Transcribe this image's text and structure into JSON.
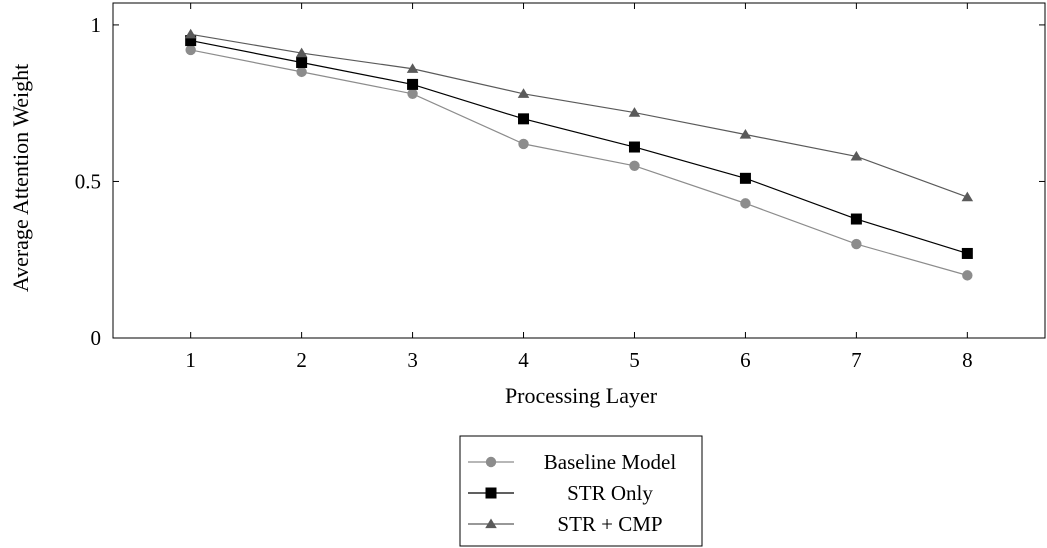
{
  "chart_data": {
    "type": "line",
    "title": "",
    "xlabel": "Processing Layer",
    "ylabel": "Average Attention Weight",
    "x": [
      1,
      2,
      3,
      4,
      5,
      6,
      7,
      8
    ],
    "xlim": [
      0.3,
      8.7
    ],
    "ylim": [
      0,
      1.07
    ],
    "xticks": [
      "1",
      "2",
      "3",
      "4",
      "5",
      "6",
      "7",
      "8"
    ],
    "yticks": [
      {
        "value": 0,
        "label": "0"
      },
      {
        "value": 0.5,
        "label": "0.5"
      },
      {
        "value": 1,
        "label": "1"
      }
    ],
    "grid": false,
    "legend_position": "below",
    "series": [
      {
        "name": "Baseline Model",
        "marker": "circle",
        "line_color": "#8c8c8c",
        "marker_color": "#8c8c8c",
        "values": [
          0.92,
          0.85,
          0.78,
          0.62,
          0.55,
          0.43,
          0.3,
          0.2
        ]
      },
      {
        "name": "STR Only",
        "marker": "square",
        "line_color": "#000000",
        "marker_color": "#000000",
        "values": [
          0.95,
          0.88,
          0.81,
          0.7,
          0.61,
          0.51,
          0.38,
          0.27
        ]
      },
      {
        "name": "STR + CMP",
        "marker": "triangle",
        "line_color": "#5a5a5a",
        "marker_color": "#5a5a5a",
        "values": [
          0.97,
          0.91,
          0.86,
          0.78,
          0.72,
          0.65,
          0.58,
          0.45
        ]
      }
    ]
  }
}
